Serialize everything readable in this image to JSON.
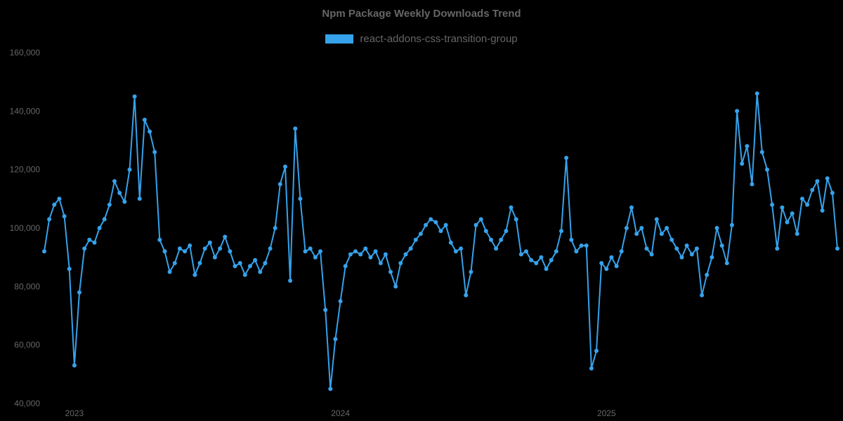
{
  "chart_data": {
    "type": "line",
    "title": "Npm Package Weekly Downloads Trend",
    "series_name": "react-addons-css-transition-group",
    "color": "#36a2eb",
    "text_color": "#666666",
    "background": "#000000",
    "ylabel": "",
    "xlabel": "",
    "ylim": [
      40000,
      160000
    ],
    "yticks": [
      40000,
      60000,
      80000,
      100000,
      120000,
      140000,
      160000
    ],
    "xticks": [
      {
        "label": "2023",
        "index": 6
      },
      {
        "label": "2024",
        "index": 59
      },
      {
        "label": "2025",
        "index": 112
      }
    ],
    "x_unit": "week",
    "legend_position": "top",
    "grid": false,
    "point_radius": 3,
    "line_width": 2,
    "values": [
      92000,
      103000,
      108000,
      110000,
      104000,
      86000,
      53000,
      78000,
      93000,
      96000,
      95000,
      100000,
      103000,
      108000,
      116000,
      112000,
      109000,
      120000,
      145000,
      110000,
      137000,
      133000,
      126000,
      96000,
      92000,
      85000,
      88000,
      93000,
      92000,
      94000,
      84000,
      88000,
      93000,
      95000,
      90000,
      93000,
      97000,
      92000,
      87000,
      88000,
      84000,
      87000,
      89000,
      85000,
      88000,
      93000,
      100000,
      115000,
      121000,
      82000,
      134000,
      110000,
      92000,
      93000,
      90000,
      92000,
      72000,
      45000,
      62000,
      75000,
      87000,
      91000,
      92000,
      91000,
      93000,
      90000,
      92000,
      88000,
      91000,
      85000,
      80000,
      88000,
      91000,
      93000,
      96000,
      98000,
      101000,
      103000,
      102000,
      99000,
      101000,
      95000,
      92000,
      93000,
      77000,
      85000,
      101000,
      103000,
      99000,
      96000,
      93000,
      96000,
      99000,
      107000,
      103000,
      91000,
      92000,
      89000,
      88000,
      90000,
      86000,
      89000,
      92000,
      99000,
      124000,
      96000,
      92000,
      94000,
      94000,
      52000,
      58000,
      88000,
      86000,
      90000,
      87000,
      92000,
      100000,
      107000,
      98000,
      100000,
      93000,
      91000,
      103000,
      98000,
      100000,
      96000,
      93000,
      90000,
      94000,
      91000,
      93000,
      77000,
      84000,
      90000,
      100000,
      94000,
      88000,
      101000,
      140000,
      122000,
      128000,
      115000,
      146000,
      126000,
      120000,
      108000,
      93000,
      107000,
      102000,
      105000,
      98000,
      110000,
      108000,
      113000,
      116000,
      106000,
      117000,
      112000,
      93000
    ]
  }
}
